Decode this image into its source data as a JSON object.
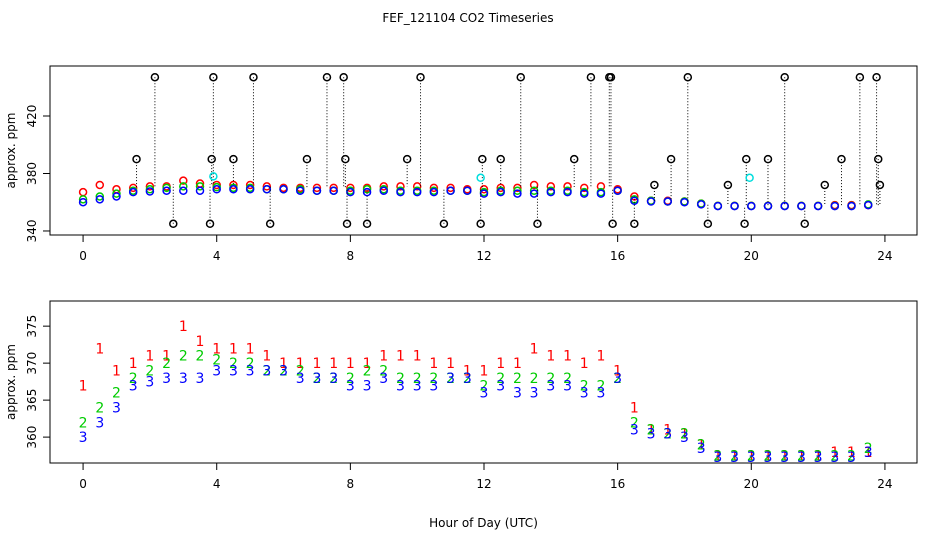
{
  "chart_data": [
    {
      "type": "scatter",
      "title": "FEF_121104  CO2 Timeseries",
      "ylabel": "approx. ppm",
      "x": [
        0,
        0.5,
        1,
        1.5,
        2,
        2.5,
        3,
        3.5,
        4,
        4.5,
        5,
        5.5,
        6,
        6.5,
        7,
        7.5,
        8,
        8.5,
        9,
        9.5,
        10,
        10.5,
        11,
        11.5,
        12,
        12.5,
        13,
        13.5,
        14,
        14.5,
        15,
        15.5,
        16,
        16.5,
        17,
        17.5,
        18,
        18.5,
        19,
        19.5,
        20,
        20.5,
        21,
        21.5,
        22,
        22.5,
        23,
        23.5
      ],
      "xlim": [
        -0.99,
        24.96
      ],
      "xticks": [
        0,
        4,
        8,
        12,
        16,
        20,
        24
      ],
      "ylim": [
        337.2,
        454.8
      ],
      "yticks": [
        340,
        380,
        420
      ],
      "series": [
        {
          "color": "#ff0000",
          "values": [
            367,
            372,
            369,
            370,
            371,
            371,
            375,
            373,
            372,
            372,
            372,
            371,
            370,
            370,
            370,
            370,
            370,
            370,
            371,
            371,
            371,
            370,
            370,
            369,
            369,
            370,
            370,
            372,
            371,
            371,
            370,
            371,
            369,
            364,
            361,
            361,
            360.5,
            359,
            357.5,
            357.5,
            357.5,
            357.5,
            357.5,
            357.5,
            357.5,
            358,
            358,
            358
          ]
        },
        {
          "color": "#00cc00",
          "values": [
            362,
            364,
            366,
            368,
            369,
            370,
            371,
            371,
            370.5,
            370,
            370,
            369,
            369,
            369,
            368,
            368,
            368,
            369,
            369,
            368,
            368,
            368,
            368,
            368,
            367,
            368,
            368,
            368,
            368,
            368,
            367,
            367,
            368,
            362,
            361,
            360.5,
            360.5,
            359,
            357.5,
            357.5,
            357.5,
            357.5,
            357.5,
            357.5,
            357.5,
            357.5,
            357.5,
            358.5
          ]
        },
        {
          "color": "#0000ff",
          "values": [
            360,
            362,
            364,
            367,
            367.5,
            368,
            368,
            368,
            369,
            369,
            369,
            369,
            369,
            368,
            368,
            368,
            367,
            367,
            368,
            367,
            367,
            367,
            368,
            368,
            366,
            367,
            366,
            366,
            367,
            367,
            366,
            366,
            368,
            361,
            360.5,
            360.5,
            360,
            358.5,
            357.3,
            357.3,
            357.3,
            357.3,
            357.3,
            357.3,
            357.3,
            357.3,
            357.3,
            358
          ]
        },
        {
          "color": "#000000",
          "droplines": true,
          "x": [
            1.6,
            2.15,
            2.7,
            3.8,
            3.85,
            3.9,
            4.5,
            5.1,
            5.6,
            6.7,
            7.3,
            7.8,
            7.85,
            7.9,
            8.5,
            9.7,
            10.1,
            10.8,
            11.9,
            11.95,
            12.5,
            13.1,
            13.6,
            14.7,
            15.2,
            15.75,
            15.8,
            15.85,
            16.5,
            17.1,
            17.6,
            18.1,
            18.7,
            19.3,
            19.8,
            19.85,
            20.5,
            21.0,
            21.6,
            22.2,
            22.7,
            23.25,
            23.75,
            23.8,
            23.85
          ],
          "values": [
            390,
            447,
            345,
            345,
            390,
            447,
            390,
            447,
            345,
            390,
            447,
            447,
            390,
            345,
            345,
            390,
            447,
            345,
            345,
            390,
            390,
            447,
            345,
            390,
            447,
            447,
            447,
            345,
            345,
            372,
            390,
            447,
            345,
            372,
            345,
            390,
            390,
            447,
            345,
            372,
            390,
            447,
            447,
            390,
            372
          ]
        },
        {
          "color": "#00dddd",
          "x": [
            3.9,
            11.9,
            19.95
          ],
          "values": [
            378,
            377,
            377
          ]
        }
      ]
    },
    {
      "type": "scatter",
      "ylabel": "approx. ppm",
      "xlabel": "Hour of Day (UTC)",
      "x": [
        0,
        0.5,
        1,
        1.5,
        2,
        2.5,
        3,
        3.5,
        4,
        4.5,
        5,
        5.5,
        6,
        6.5,
        7,
        7.5,
        8,
        8.5,
        9,
        9.5,
        10,
        10.5,
        11,
        11.5,
        12,
        12.5,
        13,
        13.5,
        14,
        14.5,
        15,
        15.5,
        16,
        16.5,
        17,
        17.5,
        18,
        18.5,
        19,
        19.5,
        20,
        20.5,
        21,
        21.5,
        22,
        22.5,
        23,
        23.5
      ],
      "xlim": [
        -0.99,
        24.96
      ],
      "xticks": [
        0,
        4,
        8,
        12,
        16,
        20,
        24
      ],
      "ylim": [
        356.5,
        378.4
      ],
      "yticks": [
        360,
        365,
        370,
        375
      ],
      "series": [
        {
          "color": "#ff0000",
          "marker": "1",
          "values": [
            367,
            372,
            369,
            370,
            371,
            371,
            375,
            373,
            372,
            372,
            372,
            371,
            370,
            370,
            370,
            370,
            370,
            370,
            371,
            371,
            371,
            370,
            370,
            369,
            369,
            370,
            370,
            372,
            371,
            371,
            370,
            371,
            369,
            364,
            361,
            361,
            360.5,
            359,
            357.5,
            357.5,
            357.5,
            357.5,
            357.5,
            357.5,
            357.5,
            358,
            358,
            358
          ]
        },
        {
          "color": "#00cc00",
          "marker": "2",
          "values": [
            362,
            364,
            366,
            368,
            369,
            370,
            371,
            371,
            370.5,
            370,
            370,
            369,
            369,
            369,
            368,
            368,
            368,
            369,
            369,
            368,
            368,
            368,
            368,
            368,
            367,
            368,
            368,
            368,
            368,
            368,
            367,
            367,
            368,
            362,
            361,
            360.5,
            360.5,
            359,
            357.5,
            357.5,
            357.5,
            357.5,
            357.5,
            357.5,
            357.5,
            357.5,
            357.5,
            358.5
          ]
        },
        {
          "color": "#0000ff",
          "marker": "3",
          "values": [
            360,
            362,
            364,
            367,
            367.5,
            368,
            368,
            368,
            369,
            369,
            369,
            369,
            369,
            368,
            368,
            368,
            367,
            367,
            368,
            367,
            367,
            367,
            368,
            368,
            366,
            367,
            366,
            366,
            367,
            367,
            366,
            366,
            368,
            361,
            360.5,
            360.5,
            360,
            358.5,
            357.3,
            357.3,
            357.3,
            357.3,
            357.3,
            357.3,
            357.3,
            357.3,
            357.3,
            358
          ]
        }
      ]
    }
  ]
}
